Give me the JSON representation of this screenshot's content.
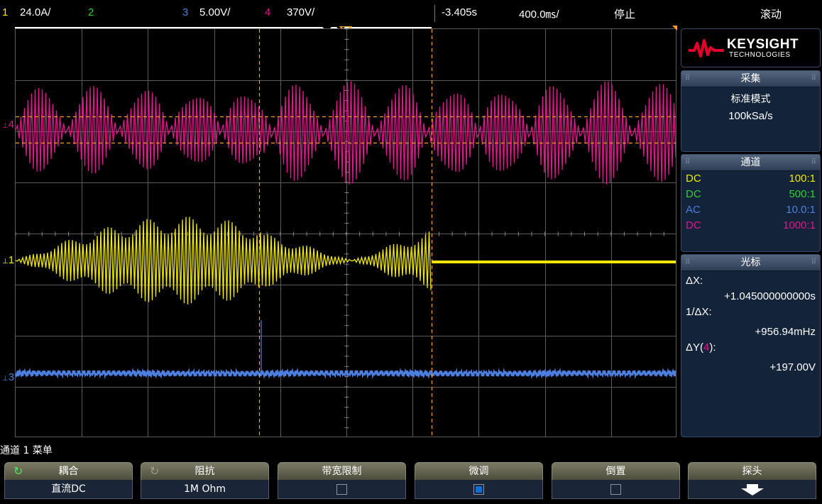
{
  "topbar": {
    "ch1_index": "1",
    "ch1_scale": "24.0A/",
    "ch2_index": "2",
    "ch3_index": "3",
    "ch3_scale": "5.00V/",
    "ch4_index": "4",
    "ch4_scale": "370V/",
    "time_offset": "-3.405s",
    "time_scale": "400.0㎳/",
    "run_state": "停止",
    "mode": "滚动"
  },
  "channel_markers": {
    "ch4": "4",
    "ch1": "1",
    "ch3": "3"
  },
  "colors": {
    "ch1": "#f0e800",
    "ch2": "#2fd12f",
    "ch3": "#4d7fe0",
    "ch4": "#e0168c",
    "cursor": "#ffa020",
    "grid": "#5a5a5a"
  },
  "panel": {
    "logo_brand": "KEYSIGHT",
    "logo_sub": "TECHNOLOGIES",
    "acquire": {
      "title": "采集",
      "mode": "标准模式",
      "rate": "100kSa/s"
    },
    "channels": {
      "title": "通道",
      "rows": [
        {
          "coupling": "DC",
          "probe": "100:1"
        },
        {
          "coupling": "DC",
          "probe": "500:1"
        },
        {
          "coupling": "AC",
          "probe": "10.0:1"
        },
        {
          "coupling": "DC",
          "probe": "1000:1"
        }
      ]
    },
    "cursors": {
      "title": "光标",
      "dx_label": "ΔX:",
      "dx_value": "+1.045000000000s",
      "inv_dx_label": "1/ΔX:",
      "inv_dx_value": "+956.94mHz",
      "dy_label_prefix": "ΔY(",
      "dy_channel": "4",
      "dy_label_suffix": "):",
      "dy_value": "+197.00V"
    }
  },
  "menu": {
    "title": "通道 1 菜单",
    "softkeys": [
      {
        "label": "耦合",
        "value": "直流DC",
        "icon": "rotate-knob-icon"
      },
      {
        "label": "阻抗",
        "value": "1M Ohm",
        "icon": "rotate-knob-icon"
      },
      {
        "label": "带宽限制",
        "checked": false
      },
      {
        "label": "微调",
        "checked": true
      },
      {
        "label": "倒置",
        "checked": false
      },
      {
        "label": "探头",
        "icon": "arrow-down-icon"
      }
    ]
  }
}
